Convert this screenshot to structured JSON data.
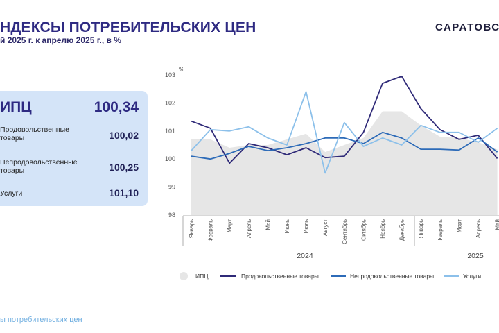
{
  "header": {
    "title": "НДЕКСЫ ПОТРЕБИТЕЛЬСКИХ ЦЕН",
    "subtitle": "й 2025 г. к апрелю 2025 г., в %",
    "brand": "САРАТОВСТАТ"
  },
  "panel": {
    "rows": [
      {
        "label": "ИПЦ",
        "value": "100,34"
      },
      {
        "label": "Продовольственные товары",
        "value": "100,02"
      },
      {
        "label": "Непродовольственные товары",
        "value": "100,25"
      },
      {
        "label": "Услуги",
        "value": "101,10"
      }
    ]
  },
  "footer": "ы потребительских цен",
  "colors": {
    "cpi": "#e6e6e6",
    "food": "#2f2a78",
    "nonfood": "#2d6bb8",
    "services": "#8cc0ea"
  },
  "chart_data": {
    "type": "line",
    "ylabel": "%",
    "ylim": [
      98,
      103
    ],
    "yticks": [
      "98",
      "99",
      "100",
      "101",
      "102",
      "103"
    ],
    "categories": [
      "Январь",
      "Февраль",
      "Март",
      "Апрель",
      "Май",
      "Июнь",
      "Июль",
      "Август",
      "Сентябрь",
      "Октябрь",
      "Ноябрь",
      "Декабрь",
      "Январь",
      "Февраль",
      "Март",
      "Апрель",
      "Май"
    ],
    "years": [
      {
        "label": "2024"
      },
      {
        "label": "2025"
      }
    ],
    "series": [
      {
        "name": "ИПЦ",
        "kind": "area",
        "color": "#e6e6e6",
        "values": [
          100.72,
          100.7,
          100.4,
          100.5,
          100.5,
          100.7,
          100.9,
          100.25,
          100.5,
          100.75,
          101.7,
          101.7,
          101.2,
          100.8,
          100.75,
          100.6,
          100.34
        ]
      },
      {
        "name": "Продовольственные товары",
        "kind": "line",
        "color": "#2f2a78",
        "values": [
          101.35,
          101.1,
          99.85,
          100.55,
          100.4,
          100.15,
          100.4,
          100.05,
          100.1,
          100.95,
          102.7,
          102.95,
          101.8,
          101.05,
          100.7,
          100.85,
          100.02
        ]
      },
      {
        "name": "Непродовольственные товары",
        "kind": "line",
        "color": "#2d6bb8",
        "values": [
          100.1,
          100.0,
          100.2,
          100.45,
          100.3,
          100.4,
          100.55,
          100.75,
          100.75,
          100.55,
          100.95,
          100.75,
          100.35,
          100.35,
          100.32,
          100.75,
          100.25
        ]
      },
      {
        "name": "Услуги",
        "kind": "line",
        "color": "#8cc0ea",
        "values": [
          100.3,
          101.05,
          101.0,
          101.15,
          100.75,
          100.5,
          102.4,
          99.5,
          101.3,
          100.45,
          100.75,
          100.5,
          101.2,
          100.95,
          100.95,
          100.6,
          101.1
        ]
      }
    ]
  }
}
